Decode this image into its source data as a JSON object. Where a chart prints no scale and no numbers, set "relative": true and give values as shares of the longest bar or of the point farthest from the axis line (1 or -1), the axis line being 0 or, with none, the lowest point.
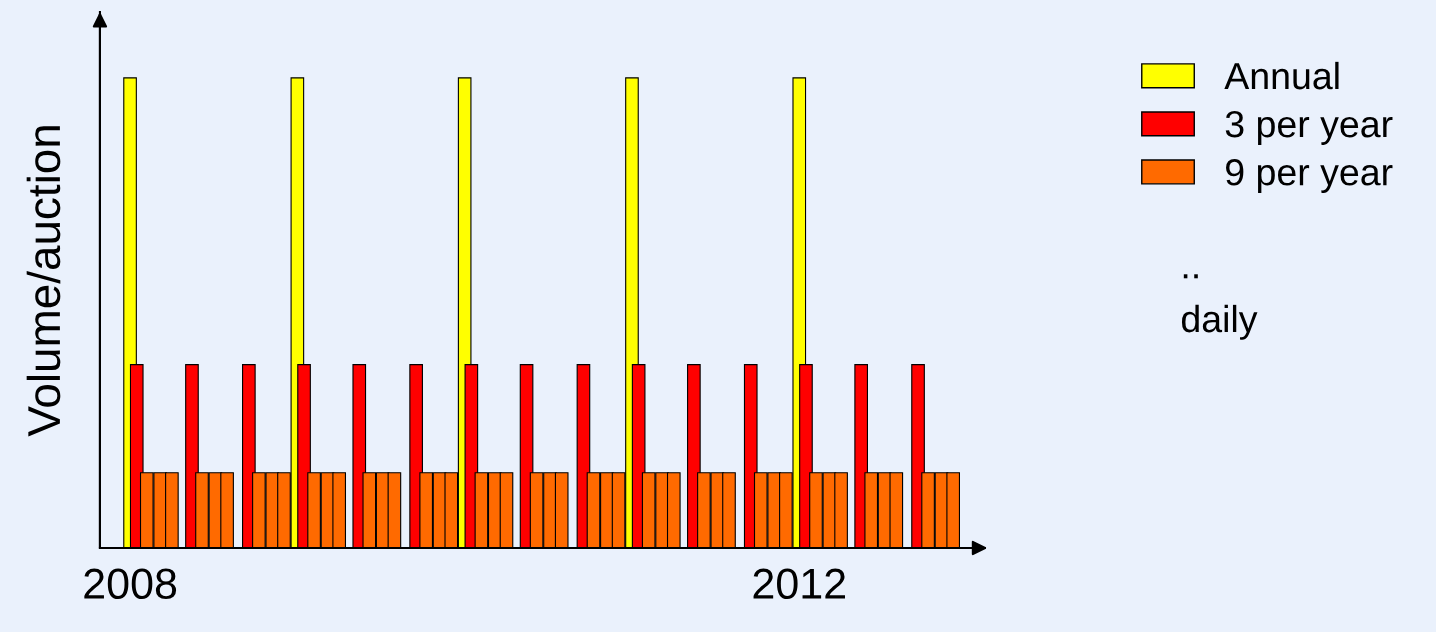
{
  "chart_data": {
    "type": "bar",
    "relative": true,
    "ylabel": "Volume/auction",
    "xlim": [
      2007.82,
      2012.97
    ],
    "xticks": [
      2008,
      2012
    ],
    "grid": false,
    "legend": "top right",
    "series": [
      {
        "name": "Annual",
        "color": "#ffff00",
        "x": [
          2008,
          2009,
          2010,
          2011,
          2012
        ],
        "values": [
          1,
          1,
          1,
          1,
          1
        ]
      },
      {
        "name": "3 per year",
        "color": "#ff0000",
        "x": [
          2008.04,
          2008.37,
          2008.71,
          2009.04,
          2009.37,
          2009.71,
          2010.04,
          2010.37,
          2010.71,
          2011.04,
          2011.37,
          2011.71,
          2012.04,
          2012.37,
          2012.71
        ],
        "values": [
          0.39,
          0.39,
          0.39,
          0.39,
          0.39,
          0.39,
          0.39,
          0.39,
          0.39,
          0.39,
          0.39,
          0.39,
          0.39,
          0.39,
          0.39
        ]
      },
      {
        "name": "9 per year",
        "color": "#ff6a00",
        "x": [
          2008.1,
          2008.18,
          2008.25,
          2008.43,
          2008.51,
          2008.58,
          2008.77,
          2008.85,
          2008.92,
          2009.1,
          2009.18,
          2009.25,
          2009.43,
          2009.51,
          2009.58,
          2009.77,
          2009.85,
          2009.92,
          2010.1,
          2010.18,
          2010.25,
          2010.43,
          2010.51,
          2010.58,
          2010.77,
          2010.85,
          2010.92,
          2011.1,
          2011.18,
          2011.25,
          2011.43,
          2011.51,
          2011.58,
          2011.77,
          2011.85,
          2011.92,
          2012.1,
          2012.18,
          2012.25,
          2012.43,
          2012.51,
          2012.58,
          2012.77,
          2012.85,
          2012.92
        ],
        "values": [
          0.16,
          0.16,
          0.16,
          0.16,
          0.16,
          0.16,
          0.16,
          0.16,
          0.16,
          0.16,
          0.16,
          0.16,
          0.16,
          0.16,
          0.16,
          0.16,
          0.16,
          0.16,
          0.16,
          0.16,
          0.16,
          0.16,
          0.16,
          0.16,
          0.16,
          0.16,
          0.16,
          0.16,
          0.16,
          0.16,
          0.16,
          0.16,
          0.16,
          0.16,
          0.16,
          0.16,
          0.16,
          0.16,
          0.16,
          0.16,
          0.16,
          0.16,
          0.16,
          0.16,
          0.16
        ]
      }
    ],
    "annotations": [
      "..",
      "daily"
    ]
  }
}
